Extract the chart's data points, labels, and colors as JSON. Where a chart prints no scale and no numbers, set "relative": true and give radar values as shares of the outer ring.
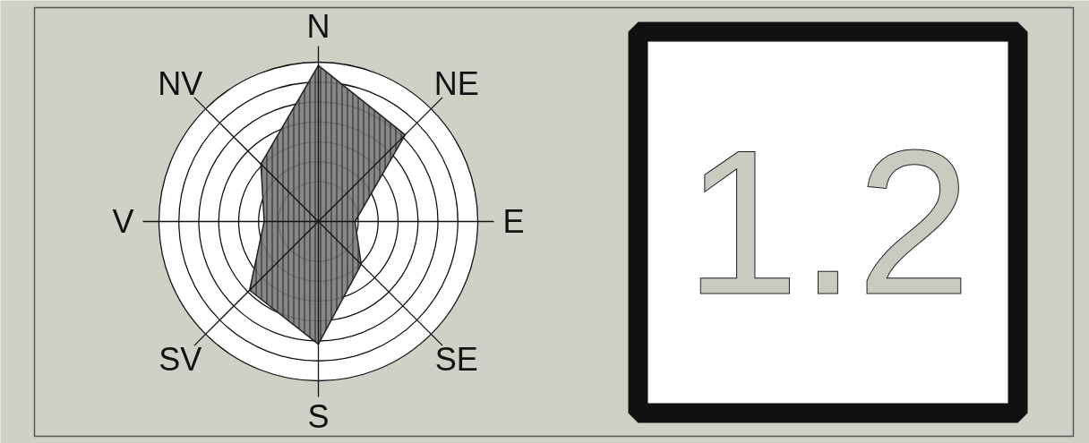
{
  "chart_data": {
    "type": "radar",
    "relative": true,
    "grid": true,
    "categories": [
      "N",
      "NE",
      "E",
      "SE",
      "S",
      "SV",
      "V",
      "NV"
    ],
    "series": [
      {
        "color": "#7a7a7a",
        "values": [
          0.98,
          0.77,
          0.23,
          0.38,
          0.77,
          0.61,
          0.34,
          0.51
        ]
      }
    ],
    "annotations": [
      "1.2"
    ]
  }
}
